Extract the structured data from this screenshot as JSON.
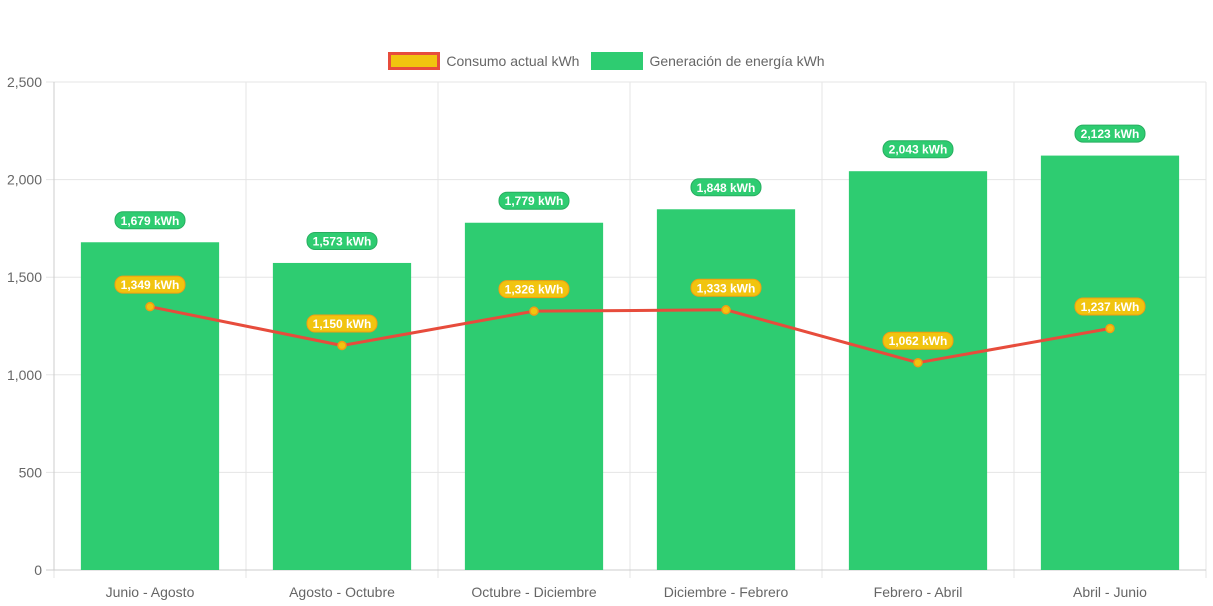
{
  "colors": {
    "bar": "#2ecc71",
    "line": "#e74c3c",
    "point_fill": "#f1c40f",
    "line_label_bg": "#f1c40f",
    "line_label_border": "#f39c12",
    "bar_label_bg": "#2ecc71",
    "bar_label_border": "#27ae60",
    "grid": "#e5e5e5",
    "axis_text": "#666666"
  },
  "chart_data": {
    "type": "bar",
    "categories": [
      "Junio - Agosto",
      "Agosto - Octubre",
      "Octubre - Diciembre",
      "Diciembre - Febrero",
      "Febrero - Abril",
      "Abril - Junio"
    ],
    "series": [
      {
        "name": "Consumo actual kWh",
        "type": "line",
        "values": [
          1349,
          1150,
          1326,
          1333,
          1062,
          1237
        ],
        "labels": [
          "1,349 kWh",
          "1,150 kWh",
          "1,326 kWh",
          "1,333 kWh",
          "1,062 kWh",
          "1,237 kWh"
        ]
      },
      {
        "name": "Generación de energía kWh",
        "type": "bar",
        "values": [
          1679,
          1573,
          1779,
          1848,
          2043,
          2123
        ],
        "labels": [
          "1,679 kWh",
          "1,573 kWh",
          "1,779 kWh",
          "1,848 kWh",
          "2,043 kWh",
          "2,123 kWh"
        ]
      }
    ],
    "ylim": [
      0,
      2500
    ],
    "yticks": [
      0,
      500,
      1000,
      1500,
      2000,
      2500
    ],
    "ytick_labels": [
      "0",
      "500",
      "1,000",
      "1,500",
      "2,000",
      "2,500"
    ],
    "grid": true,
    "legend_position": "top-center",
    "title": "",
    "xlabel": "",
    "ylabel": ""
  }
}
